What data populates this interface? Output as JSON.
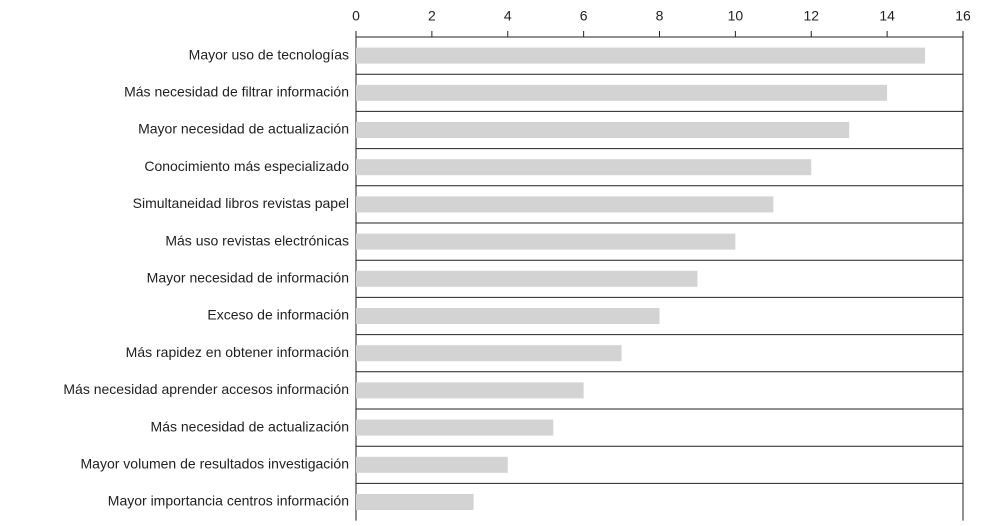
{
  "chart_data": {
    "type": "barh",
    "categories": [
      "Mayor uso de tecnologías",
      "Más necesidad de filtrar información",
      "Mayor necesidad de actualización",
      "Conocimiento más especializado",
      "Simultaneidad libros revistas papel",
      "Más uso revistas electrónicas",
      "Mayor necesidad de información",
      "Exceso de información",
      "Más rapidez en obtener información",
      "Más necesidad aprender accesos información",
      "Más necesidad de actualización",
      "Mayor volumen de resultados investigación",
      "Mayor importancia centros información"
    ],
    "values": [
      15,
      14,
      13,
      12,
      11,
      10,
      9,
      8,
      7,
      6,
      5.2,
      4,
      3.1
    ],
    "color": "#d3d3d3",
    "xlim": [
      0,
      16
    ],
    "xticks": [
      0,
      2,
      4,
      6,
      8,
      10,
      12,
      14,
      16
    ],
    "x_axis_position": "top",
    "grid": true
  }
}
